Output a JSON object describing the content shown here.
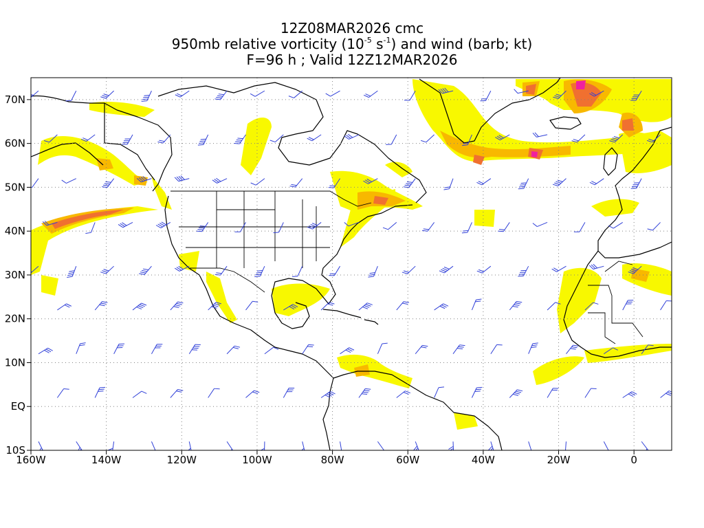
{
  "title": {
    "line1": "12Z08MAR2026 cmc",
    "line2_prefix": "950mb relative vorticity (10",
    "line2_exp1": "-5",
    "line2_mid": " s",
    "line2_exp2": "-1",
    "line2_suffix": ") and wind (barb; kt)",
    "line3": "F=96 h ; Valid 12Z12MAR2026"
  },
  "map": {
    "projection": "cylindrical equidistant",
    "lon_range": [
      -160,
      10
    ],
    "lat_range": [
      -10,
      75
    ],
    "lon_ticks": [
      {
        "value": -160,
        "label": "160W"
      },
      {
        "value": -140,
        "label": "140W"
      },
      {
        "value": -120,
        "label": "120W"
      },
      {
        "value": -100,
        "label": "100W"
      },
      {
        "value": -80,
        "label": "80W"
      },
      {
        "value": -60,
        "label": "60W"
      },
      {
        "value": -40,
        "label": "40W"
      },
      {
        "value": -20,
        "label": "20W"
      },
      {
        "value": 0,
        "label": "0"
      }
    ],
    "lat_ticks": [
      {
        "value": 70,
        "label": "70N"
      },
      {
        "value": 60,
        "label": "60N"
      },
      {
        "value": 50,
        "label": "50N"
      },
      {
        "value": 40,
        "label": "40N"
      },
      {
        "value": 30,
        "label": "30N"
      },
      {
        "value": 20,
        "label": "20N"
      },
      {
        "value": 10,
        "label": "10N"
      },
      {
        "value": 0,
        "label": "EQ"
      },
      {
        "value": -10,
        "label": "10S"
      }
    ],
    "grid": true,
    "colors": {
      "vort_low": "#f8f800",
      "vort_mid": "#f8b800",
      "vort_high": "#f07030",
      "vort_max": "#f020a0",
      "wind_barb": "#3040d8",
      "coastline": "#000000",
      "grid": "#808080"
    }
  }
}
